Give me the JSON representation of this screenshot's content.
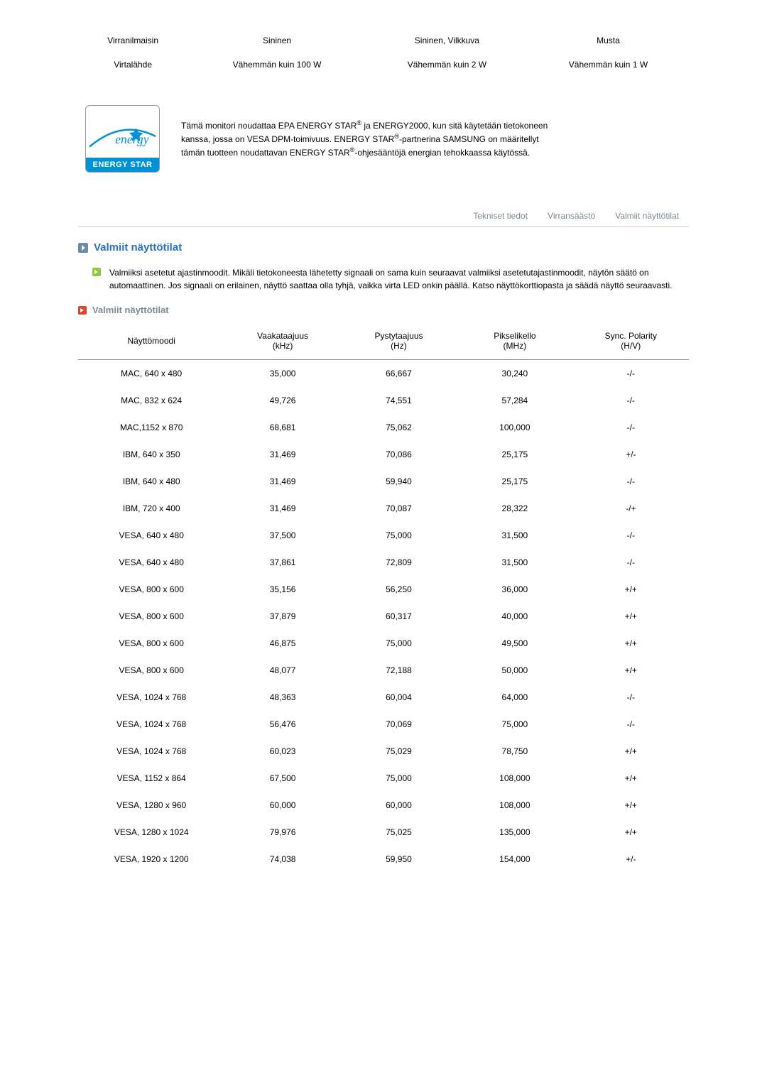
{
  "top_table": {
    "rows": [
      [
        "Virranilmaisin",
        "Sininen",
        "Sininen, Vilkkuva",
        "Musta"
      ],
      [
        "Virtalähde",
        "Vähemmän kuin 100 W",
        "Vähemmän kuin 2 W",
        "Vähemmän kuin 1 W"
      ]
    ]
  },
  "energy_logo": {
    "script_text": "energy",
    "banner": "ENERGY STAR"
  },
  "energy_text": {
    "lines": [
      "Tämä monitori noudattaa EPA ENERGY STAR",
      " ja ENERGY2000, kun sitä käytetään tietokoneen kanssa, jossa on VESA DPM-toimivuus. ENERGY STAR",
      "-partnerina SAMSUNG on määritellyt tämän tuotteen noudattavan ENERGY STAR",
      "-ohjesääntöjä energian tehokkaassa käytössä."
    ],
    "reg": "®"
  },
  "tabs": [
    "Tekniset tiedot",
    "Virransäästö",
    "Valmiit näyttötilat"
  ],
  "section_title": "Valmiit näyttötilat",
  "intro_paragraph": "Valmiiksi asetetut ajastinmoodit. Mikäli tietokoneesta lähetetty signaali on sama kuin seuraavat valmiiksi asetetutajastinmoodit, näytön säätö on automaattinen. Jos signaali on erilainen, näyttö saattaa olla tyhjä, vaikka virta LED onkin päällä. Katso näyttökorttiopasta ja säädä näyttö seuraavasti.",
  "sub_title": "Valmiit näyttötilat",
  "modes_table": {
    "headers": [
      "Näyttömoodi",
      "Vaakataajuus\n(kHz)",
      "Pystytaajuus\n(Hz)",
      "Pikselikello\n(MHz)",
      "Sync. Polarity\n(H/V)"
    ],
    "rows": [
      [
        "MAC, 640 x 480",
        "35,000",
        "66,667",
        "30,240",
        "-/-"
      ],
      [
        "MAC, 832 x 624",
        "49,726",
        "74,551",
        "57,284",
        "-/-"
      ],
      [
        "MAC,1152 x 870",
        "68,681",
        "75,062",
        "100,000",
        "-/-"
      ],
      [
        "IBM, 640 x 350",
        "31,469",
        "70,086",
        "25,175",
        "+/-"
      ],
      [
        "IBM, 640 x 480",
        "31,469",
        "59,940",
        "25,175",
        "-/-"
      ],
      [
        "IBM, 720 x 400",
        "31,469",
        "70,087",
        "28,322",
        "-/+"
      ],
      [
        "VESA, 640 x 480",
        "37,500",
        "75,000",
        "31,500",
        "-/-"
      ],
      [
        "VESA, 640 x 480",
        "37,861",
        "72,809",
        "31,500",
        "-/-"
      ],
      [
        "VESA, 800 x 600",
        "35,156",
        "56,250",
        "36,000",
        "+/+"
      ],
      [
        "VESA, 800 x 600",
        "37,879",
        "60,317",
        "40,000",
        "+/+"
      ],
      [
        "VESA, 800 x 600",
        "46,875",
        "75,000",
        "49,500",
        "+/+"
      ],
      [
        "VESA, 800 x 600",
        "48,077",
        "72,188",
        "50,000",
        "+/+"
      ],
      [
        "VESA, 1024 x 768",
        "48,363",
        "60,004",
        "64,000",
        "-/-"
      ],
      [
        "VESA, 1024 x 768",
        "56,476",
        "70,069",
        "75,000",
        "-/-"
      ],
      [
        "VESA, 1024 x 768",
        "60,023",
        "75,029",
        "78,750",
        "+/+"
      ],
      [
        "VESA, 1152 x 864",
        "67,500",
        "75,000",
        "108,000",
        "+/+"
      ],
      [
        "VESA, 1280 x 960",
        "60,000",
        "60,000",
        "108,000",
        "+/+"
      ],
      [
        "VESA, 1280 x 1024",
        "79,976",
        "75,025",
        "135,000",
        "+/+"
      ],
      [
        "VESA, 1920 x 1200",
        "74,038",
        "59,950",
        "154,000",
        "+/-"
      ]
    ],
    "col_widths": [
      "24%",
      "19%",
      "19%",
      "19%",
      "19%"
    ]
  },
  "colors": {
    "tab_text": "#7a8a94",
    "section_title": "#2a71b8",
    "arrow_box": "#6b8aa3",
    "bullet_green": "#8fc73e",
    "bullet_red": "#d9432f",
    "energy_blue": "#0090d6",
    "border": "#ccc",
    "table_header_border": "#888"
  }
}
